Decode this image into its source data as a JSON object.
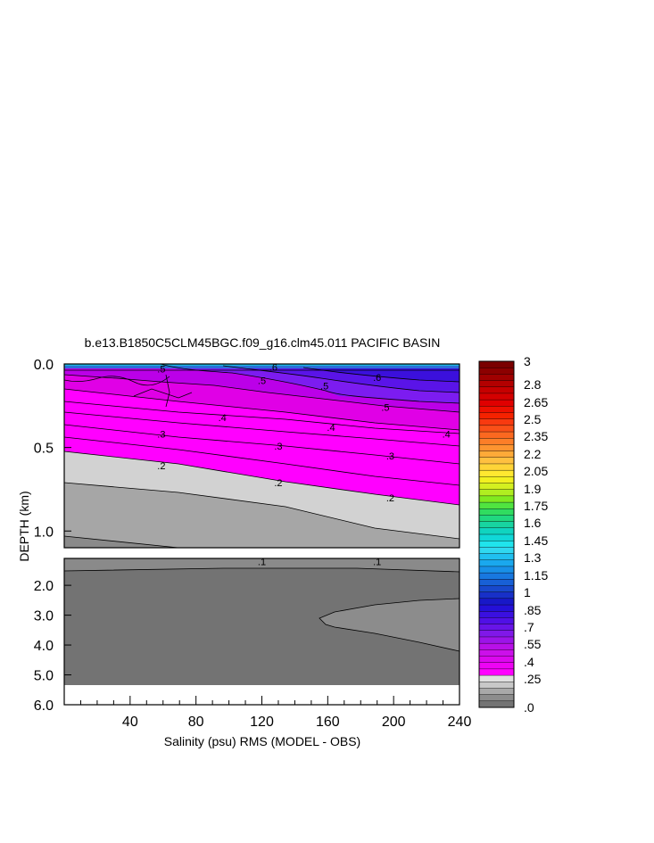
{
  "chart_data": {
    "type": "heatmap",
    "title": "b.e13.B1850C5CLM45BGC.f09_g16.clm45.011 PACIFIC BASIN",
    "xlabel": "Salinity (psu) RMS (MODEL - OBS)",
    "ylabel": "DEPTH (km)",
    "xlim": [
      0,
      240
    ],
    "x_ticks": [
      "40",
      "80",
      "120",
      "160",
      "200",
      "240"
    ],
    "upper_panel": {
      "ylim": [
        0.0,
        1.1
      ],
      "y_ticks": [
        "0.0",
        "0.5",
        "1.0"
      ]
    },
    "lower_panel": {
      "ylim": [
        1.1,
        6.0
      ],
      "y_ticks": [
        "2.0",
        "3.0",
        "4.0",
        "5.0",
        "6.0"
      ]
    },
    "colorbar": {
      "labels": [
        "3",
        "2.8",
        "2.65",
        "2.5",
        "2.35",
        "2.2",
        "2.05",
        "1.9",
        "1.75",
        "1.6",
        "1.45",
        "1.3",
        "1.15",
        "1",
        ".85",
        ".7",
        ".55",
        ".4",
        ".25",
        ".0"
      ],
      "label_values": [
        3.0,
        2.8,
        2.65,
        2.5,
        2.35,
        2.2,
        2.05,
        1.9,
        1.75,
        1.6,
        1.45,
        1.3,
        1.15,
        1.0,
        0.85,
        0.7,
        0.55,
        0.4,
        0.25,
        0.0
      ]
    },
    "contour_labels": [
      {
        "text": ".5",
        "x": 59,
        "depth": 0.03
      },
      {
        "text": ".6",
        "x": 127,
        "depth": 0.02
      },
      {
        "text": ".5",
        "x": 120,
        "depth": 0.1
      },
      {
        "text": ".5",
        "x": 158,
        "depth": 0.13
      },
      {
        "text": ".6",
        "x": 190,
        "depth": 0.08
      },
      {
        "text": ".5",
        "x": 195,
        "depth": 0.26
      },
      {
        "text": ".4",
        "x": 96,
        "depth": 0.32
      },
      {
        "text": ".4",
        "x": 162,
        "depth": 0.38
      },
      {
        "text": ".4",
        "x": 232,
        "depth": 0.42
      },
      {
        "text": ".3",
        "x": 59,
        "depth": 0.42
      },
      {
        "text": ".3",
        "x": 130,
        "depth": 0.49
      },
      {
        "text": ".3",
        "x": 198,
        "depth": 0.55
      },
      {
        "text": ".2",
        "x": 59,
        "depth": 0.61
      },
      {
        "text": ".2",
        "x": 130,
        "depth": 0.71
      },
      {
        "text": ".2",
        "x": 198,
        "depth": 0.8
      },
      {
        "text": ".1",
        "x": 120,
        "depth": 1.2
      },
      {
        "text": ".1",
        "x": 190,
        "depth": 1.2
      }
    ]
  }
}
